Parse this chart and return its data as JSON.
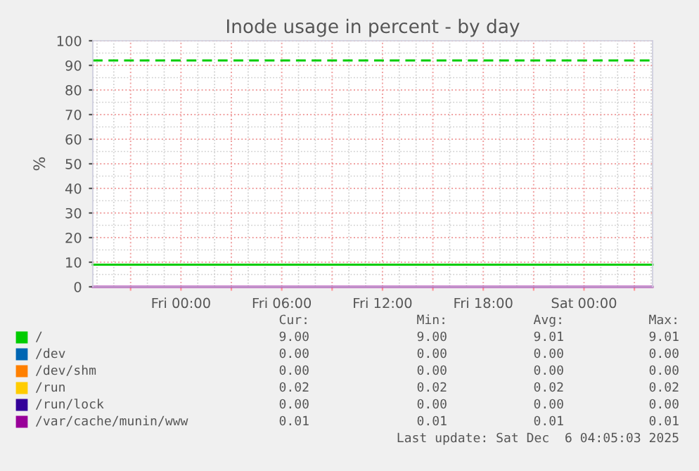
{
  "chart_data": {
    "type": "line",
    "title": "Inode usage in percent - by day",
    "ylabel": "%",
    "x": [
      "2025-12-04T18:45",
      "2025-12-06T04:05"
    ],
    "series": [
      {
        "name": "/",
        "color": "#00cc00",
        "values": [
          9.0,
          9.0
        ]
      },
      {
        "name": "/dev",
        "color": "#0066b3",
        "values": [
          null,
          null
        ]
      },
      {
        "name": "/dev/shm",
        "color": "#ff8000",
        "values": [
          null,
          null
        ]
      },
      {
        "name": "/run",
        "color": "#ffcc00",
        "values": [
          null,
          null
        ]
      },
      {
        "name": "/run/lock",
        "color": "#330099",
        "values": [
          null,
          null
        ]
      },
      {
        "name": "/var/cache/munin/www",
        "color": "#990099",
        "values": [
          0,
          0
        ]
      }
    ],
    "ref_lines": [
      {
        "axis": "y",
        "value": 92,
        "color": "#00cc00",
        "line_style": "dashed"
      }
    ],
    "xlim": [
      "2025-12-04T18:45",
      "2025-12-06T04:05"
    ],
    "xticks": [
      {
        "value": "2025-12-04T21:00",
        "label": null
      },
      {
        "value": "2025-12-05T00:00",
        "label": "Fri 00:00"
      },
      {
        "value": "2025-12-05T03:00",
        "label": null
      },
      {
        "value": "2025-12-05T06:00",
        "label": "Fri 06:00"
      },
      {
        "value": "2025-12-05T09:00",
        "label": null
      },
      {
        "value": "2025-12-05T12:00",
        "label": "Fri 12:00"
      },
      {
        "value": "2025-12-05T15:00",
        "label": null
      },
      {
        "value": "2025-12-05T18:00",
        "label": "Fri 18:00"
      },
      {
        "value": "2025-12-05T21:00",
        "label": null
      },
      {
        "value": "2025-12-06T00:00",
        "label": "Sat 00:00"
      },
      {
        "value": "2025-12-06T03:00",
        "label": null
      }
    ],
    "ylim": [
      0,
      100
    ],
    "yticks": [
      0,
      10,
      20,
      30,
      40,
      50,
      60,
      70,
      80,
      90,
      100
    ],
    "grid": true,
    "legend": "bottom",
    "marker": "none",
    "line_style": "solid",
    "annotations": [
      "Cur:",
      "Min:",
      "Avg:",
      "Max:",
      "9.00",
      "9.00",
      "9.01",
      "9.01",
      "0.00",
      "0.00",
      "0.00",
      "0.00",
      "0.00",
      "0.00",
      "0.00",
      "0.00",
      "0.02",
      "0.02",
      "0.02",
      "0.02",
      "0.00",
      "0.00",
      "0.00",
      "0.00",
      "0.01",
      "0.01",
      "0.01",
      "0.01",
      "Last update: Sat Dec  6 04:05:03 2025"
    ]
  }
}
